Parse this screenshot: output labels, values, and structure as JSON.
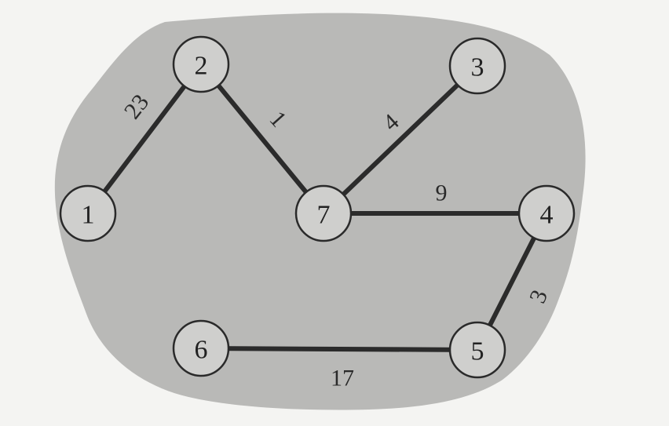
{
  "graph": {
    "nodes": [
      {
        "id": "1",
        "label": "1"
      },
      {
        "id": "2",
        "label": "2"
      },
      {
        "id": "3",
        "label": "3"
      },
      {
        "id": "4",
        "label": "4"
      },
      {
        "id": "5",
        "label": "5"
      },
      {
        "id": "6",
        "label": "6"
      },
      {
        "id": "7",
        "label": "7"
      }
    ],
    "edges": [
      {
        "from": "1",
        "to": "2",
        "weight": "23"
      },
      {
        "from": "2",
        "to": "7",
        "weight": "1"
      },
      {
        "from": "7",
        "to": "3",
        "weight": "4"
      },
      {
        "from": "7",
        "to": "4",
        "weight": "9"
      },
      {
        "from": "4",
        "to": "5",
        "weight": "3"
      },
      {
        "from": "6",
        "to": "5",
        "weight": "17"
      }
    ]
  }
}
